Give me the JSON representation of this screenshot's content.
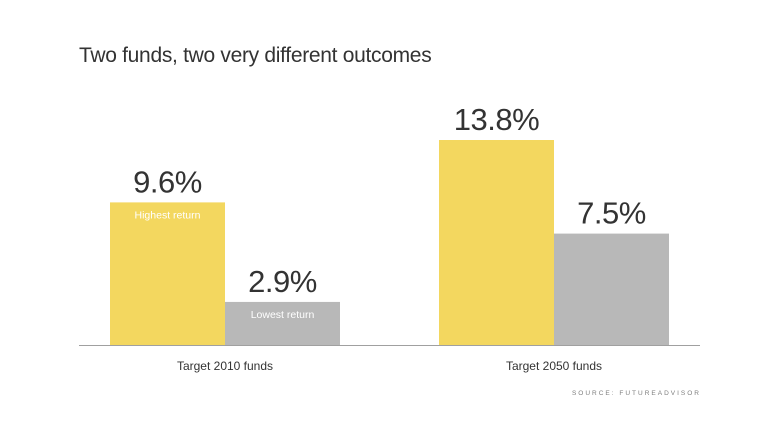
{
  "title": "Two funds, two very different outcomes",
  "source": "SOURCE: FUTUREADVISOR",
  "colors": {
    "highest": "#f3d75f",
    "lowest": "#b8b8b8",
    "axis": "#a0a0a0",
    "text": "#333333",
    "inner_label": "#ffffff"
  },
  "chart_data": {
    "type": "bar",
    "title": "Two funds, two very different outcomes",
    "categories": [
      "Target 2010 funds",
      "Target 2050 funds"
    ],
    "series": [
      {
        "name": "Highest return",
        "values": [
          9.6,
          13.8
        ],
        "labels": [
          "9.6%",
          "13.8%"
        ]
      },
      {
        "name": "Lowest return",
        "values": [
          2.9,
          7.5
        ],
        "labels": [
          "2.9%",
          "7.5%"
        ]
      }
    ],
    "series_labels_shown_on": "Target 2010 funds",
    "unit": "%",
    "ylim": [
      0,
      13.8
    ],
    "grid": false,
    "yaxis_shown": false
  }
}
